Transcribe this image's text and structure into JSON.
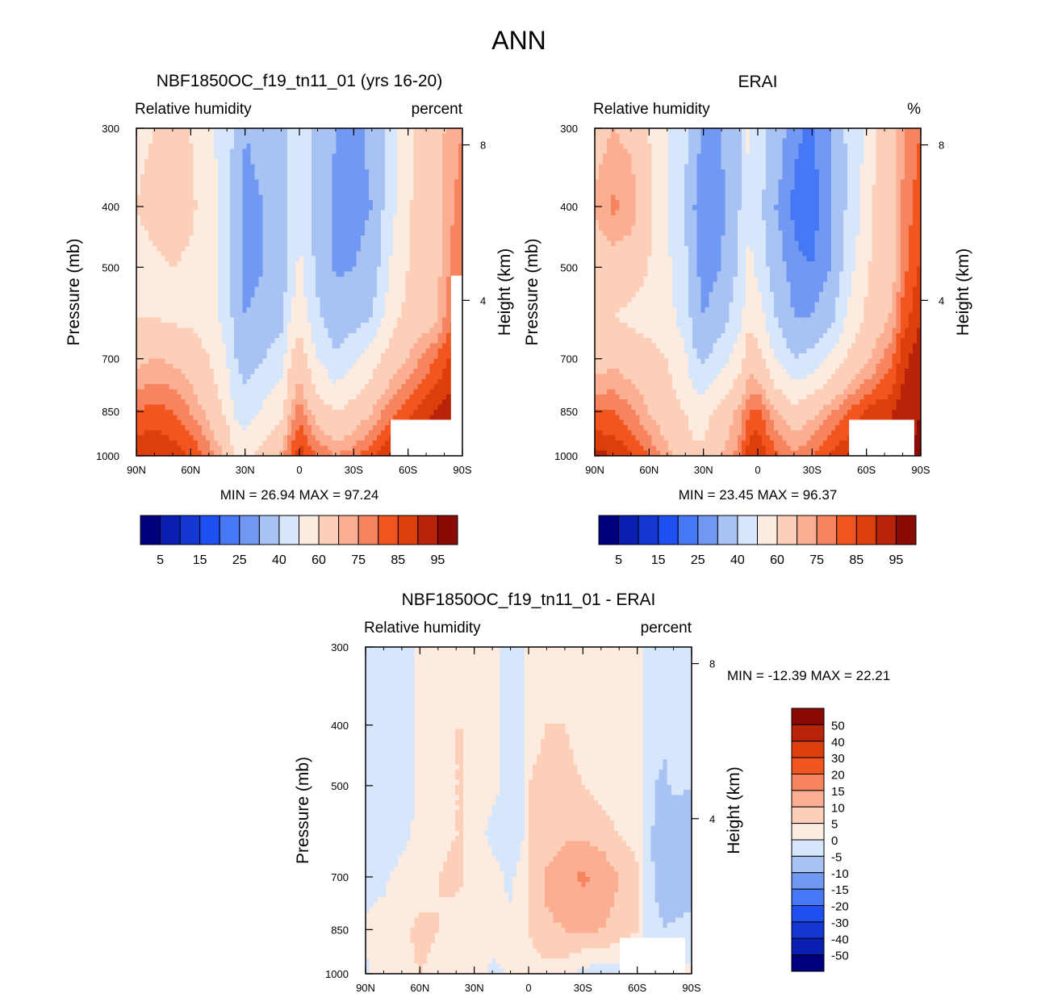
{
  "figure": {
    "title": "ANN",
    "panels": [
      {
        "id": "model",
        "title": "NBF1850OC_f19_tn11_01 (yrs 16-20)",
        "variable": "Relative humidity",
        "units": "percent",
        "stats": "MIN =  26.94  MAX =  97.24"
      },
      {
        "id": "obs",
        "title": "ERAI",
        "variable": "Relative humidity",
        "units": "%",
        "stats": "MIN =  23.45  MAX =  96.37"
      },
      {
        "id": "diff",
        "title": "NBF1850OC_f19_tn11_01 - ERAI",
        "variable": "Relative humidity",
        "units": "percent",
        "stats": "MIN = -12.39  MAX =  22.21"
      }
    ]
  },
  "chart_data": [
    {
      "type": "heatmap",
      "title": "NBF1850OC_f19_tn11_01 (yrs 16-20)",
      "subtitle_left": "Relative humidity",
      "subtitle_right": "percent",
      "xlabel": "",
      "ylabel": "Pressure (mb)",
      "ylabel_right": "Height (km)",
      "x_ticks": [
        "90N",
        "60N",
        "30N",
        "0",
        "30S",
        "60S",
        "90S"
      ],
      "x_values": [
        90,
        60,
        30,
        0,
        -30,
        -60,
        -90
      ],
      "y_ticks": [
        300,
        400,
        500,
        700,
        850,
        1000
      ],
      "y_range": [
        300,
        1000
      ],
      "y_right_ticks": [
        8,
        4
      ],
      "min": 26.94,
      "max": 97.24,
      "colorbar": {
        "labels": [
          "5",
          "15",
          "25",
          "40",
          "60",
          "75",
          "85",
          "95"
        ],
        "colors": [
          "#00007f",
          "#0a1fb1",
          "#1436d3",
          "#1e4ff0",
          "#4677f5",
          "#7198f2",
          "#a9c2f4",
          "#d6e6fb",
          "#fdebe0",
          "#fccfb9",
          "#fbae92",
          "#f6845f",
          "#f2551e",
          "#dd3f0c",
          "#b92309",
          "#8a0a06"
        ]
      },
      "field": [
        [
          58,
          60,
          62,
          60,
          52,
          45,
          37,
          30,
          32,
          35,
          44,
          50,
          37,
          30,
          28,
          32,
          45,
          55,
          62,
          62,
          65,
          70,
          75
        ],
        [
          60,
          63,
          66,
          62,
          55,
          45,
          34,
          28,
          30,
          33,
          43,
          50,
          36,
          28,
          27,
          30,
          46,
          58,
          64,
          64,
          66,
          72,
          78
        ],
        [
          57,
          58,
          60,
          58,
          54,
          45,
          33,
          27,
          30,
          33,
          44,
          52,
          37,
          29,
          30,
          34,
          50,
          60,
          64,
          64,
          66,
          73,
          80
        ],
        [
          60,
          60,
          58,
          58,
          55,
          46,
          35,
          30,
          33,
          37,
          50,
          58,
          42,
          33,
          36,
          40,
          56,
          63,
          66,
          66,
          68,
          75,
          84
        ],
        [
          68,
          70,
          69,
          66,
          60,
          50,
          40,
          36,
          40,
          45,
          60,
          66,
          50,
          42,
          48,
          56,
          64,
          70,
          74,
          77,
          80,
          84,
          88
        ],
        [
          80,
          82,
          80,
          75,
          68,
          58,
          48,
          45,
          52,
          58,
          70,
          78,
          66,
          60,
          64,
          70,
          78,
          84,
          86,
          88,
          90,
          92,
          93
        ],
        [
          90,
          90,
          88,
          85,
          78,
          68,
          58,
          56,
          64,
          72,
          82,
          88,
          80,
          75,
          78,
          84,
          90,
          93,
          94,
          95,
          96,
          96,
          97
        ]
      ],
      "field_lats": [
        90,
        80,
        70,
        60,
        50,
        40,
        35,
        30,
        20,
        10,
        5,
        0,
        -10,
        -20,
        -30,
        -40,
        -50,
        -60,
        -65,
        -70,
        -75,
        -80,
        -90
      ],
      "field_levels": [
        300,
        400,
        500,
        600,
        700,
        850,
        1000
      ]
    },
    {
      "type": "heatmap",
      "title": "ERAI",
      "subtitle_left": "Relative humidity",
      "subtitle_right": "%",
      "xlabel": "",
      "ylabel": "Pressure (mb)",
      "ylabel_right": "Height (km)",
      "x_ticks": [
        "90N",
        "60N",
        "30N",
        "0",
        "30S",
        "60S",
        "90S"
      ],
      "x_values": [
        90,
        60,
        30,
        0,
        -30,
        -60,
        -90
      ],
      "y_ticks": [
        300,
        400,
        500,
        700,
        850,
        1000
      ],
      "y_range": [
        300,
        1000
      ],
      "y_right_ticks": [
        8,
        4
      ],
      "min": 23.45,
      "max": 96.37,
      "colorbar": {
        "labels": [
          "5",
          "15",
          "25",
          "40",
          "60",
          "75",
          "85",
          "95"
        ],
        "colors": [
          "#00007f",
          "#0a1fb1",
          "#1436d3",
          "#1e4ff0",
          "#4677f5",
          "#7198f2",
          "#a9c2f4",
          "#d6e6fb",
          "#fdebe0",
          "#fccfb9",
          "#fbae92",
          "#f6845f",
          "#f2551e",
          "#dd3f0c",
          "#b92309",
          "#8a0a06"
        ]
      },
      "field": [
        [
          66,
          70,
          68,
          60,
          50,
          42,
          34,
          28,
          30,
          40,
          52,
          46,
          34,
          26,
          24,
          30,
          42,
          52,
          60,
          62,
          66,
          74,
          80
        ],
        [
          72,
          76,
          74,
          62,
          50,
          40,
          30,
          25,
          28,
          40,
          50,
          44,
          30,
          24,
          23,
          28,
          42,
          54,
          62,
          64,
          68,
          76,
          84
        ],
        [
          62,
          66,
          64,
          60,
          52,
          42,
          32,
          26,
          30,
          42,
          52,
          48,
          34,
          26,
          25,
          30,
          46,
          58,
          64,
          64,
          68,
          78,
          86
        ],
        [
          60,
          60,
          58,
          57,
          54,
          45,
          36,
          30,
          36,
          46,
          58,
          56,
          40,
          30,
          30,
          36,
          52,
          62,
          66,
          68,
          72,
          82,
          90
        ],
        [
          66,
          68,
          66,
          63,
          60,
          52,
          42,
          38,
          46,
          56,
          66,
          64,
          50,
          40,
          44,
          52,
          62,
          68,
          72,
          76,
          80,
          88,
          94
        ],
        [
          80,
          80,
          76,
          70,
          64,
          60,
          56,
          56,
          64,
          72,
          80,
          82,
          70,
          64,
          68,
          74,
          80,
          86,
          88,
          88,
          90,
          93,
          95
        ],
        [
          92,
          90,
          86,
          80,
          72,
          66,
          62,
          62,
          70,
          78,
          88,
          90,
          82,
          76,
          80,
          86,
          90,
          92,
          92,
          93,
          94,
          95,
          96
        ]
      ],
      "field_lats": [
        90,
        80,
        70,
        60,
        50,
        40,
        35,
        30,
        20,
        10,
        5,
        0,
        -10,
        -20,
        -30,
        -40,
        -50,
        -60,
        -65,
        -70,
        -75,
        -80,
        -90
      ],
      "field_levels": [
        300,
        400,
        500,
        600,
        700,
        850,
        1000
      ]
    },
    {
      "type": "heatmap",
      "title": "NBF1850OC_f19_tn11_01 - ERAI",
      "subtitle_left": "Relative humidity",
      "subtitle_right": "percent",
      "xlabel": "",
      "ylabel": "Pressure (mb)",
      "ylabel_right": "Height (km)",
      "x_ticks": [
        "90N",
        "60N",
        "30N",
        "0",
        "30S",
        "60S",
        "90S"
      ],
      "x_values": [
        90,
        60,
        30,
        0,
        -30,
        -60,
        -90
      ],
      "y_ticks": [
        300,
        400,
        500,
        700,
        850,
        1000
      ],
      "y_range": [
        300,
        1000
      ],
      "y_right_ticks": [
        8,
        4
      ],
      "min": -12.39,
      "max": 22.21,
      "colorbar": {
        "labels": [
          "50",
          "40",
          "30",
          "20",
          "15",
          "10",
          "5",
          "0",
          "-5",
          "-10",
          "-15",
          "-20",
          "-30",
          "-40",
          "-50"
        ],
        "colors": [
          "#8a0a06",
          "#b92309",
          "#dd3f0c",
          "#f2551e",
          "#f6845f",
          "#fbae92",
          "#fccfb9",
          "#fdebe0",
          "#d6e6fb",
          "#a9c2f4",
          "#7198f2",
          "#4677f5",
          "#1e4ff0",
          "#1436d3",
          "#0a1fb1",
          "#00007f"
        ]
      },
      "field": [
        [
          -2,
          -3,
          -2,
          1,
          2,
          3,
          3,
          2,
          2,
          -2,
          -3,
          3,
          3,
          4,
          4,
          3,
          2,
          2,
          -2,
          -4,
          -4,
          -2,
          -3
        ],
        [
          -3,
          -4,
          -3,
          1,
          4,
          5,
          5,
          3,
          2,
          -3,
          -4,
          4,
          5,
          5,
          4,
          3,
          2,
          2,
          -2,
          -3,
          -4,
          -3,
          -4
        ],
        [
          -4,
          -4,
          -3,
          1,
          4,
          5,
          5,
          3,
          2,
          -3,
          -3,
          5,
          6,
          6,
          5,
          3,
          2,
          2,
          -3,
          -5,
          -6,
          -4,
          -5
        ],
        [
          -4,
          -3,
          -2,
          2,
          4,
          5,
          5,
          3,
          -2,
          -4,
          -3,
          5,
          7,
          9,
          9,
          8,
          5,
          3,
          -3,
          -6,
          -8,
          -9,
          -7
        ],
        [
          -2,
          -1,
          2,
          3,
          5,
          6,
          5,
          4,
          3,
          -2,
          3,
          5,
          11,
          14,
          16,
          14,
          10,
          6,
          -2,
          -6,
          -9,
          -10,
          -8
        ],
        [
          1,
          2,
          4,
          6,
          5,
          3,
          2,
          3,
          3,
          2,
          3,
          5,
          9,
          10,
          11,
          10,
          8,
          5,
          -2,
          -3,
          -5,
          -4,
          -3
        ],
        [
          -1,
          2,
          4,
          5,
          4,
          3,
          2,
          3,
          -2,
          1,
          2,
          3,
          3,
          2,
          -2,
          -3,
          -2,
          -2,
          -1,
          -1,
          1,
          1,
          1
        ]
      ],
      "field_lats": [
        90,
        80,
        70,
        60,
        50,
        40,
        35,
        30,
        20,
        10,
        5,
        0,
        -10,
        -20,
        -30,
        -40,
        -50,
        -60,
        -65,
        -70,
        -75,
        -80,
        -90
      ],
      "field_levels": [
        300,
        400,
        500,
        600,
        700,
        850,
        1000
      ]
    }
  ]
}
